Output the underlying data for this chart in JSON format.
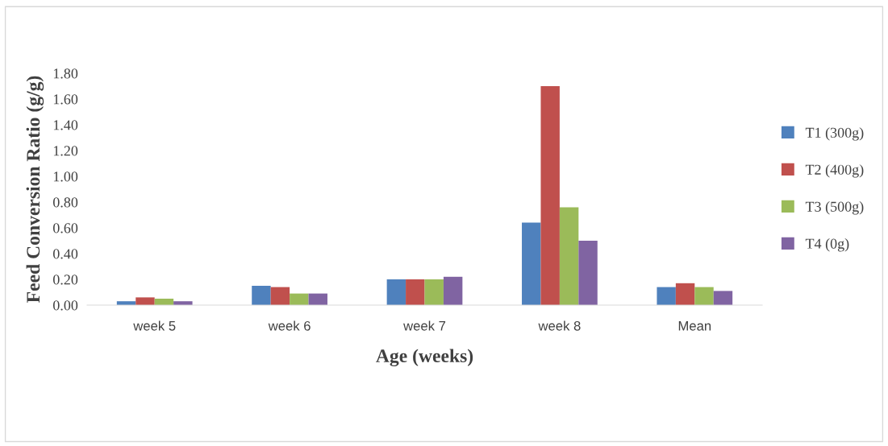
{
  "chart_data": {
    "type": "bar",
    "xlabel": "Age (weeks)",
    "ylabel": "Feed Conversion Ratio (g/g)",
    "categories": [
      "week 5",
      "week 6",
      "week 7",
      "week 8",
      "Mean"
    ],
    "series": [
      {
        "name": "T1 (300g)",
        "color": "#4f81bd",
        "values": [
          0.03,
          0.15,
          0.2,
          0.64,
          0.14
        ]
      },
      {
        "name": "T2 (400g)",
        "color": "#c0504d",
        "values": [
          0.06,
          0.14,
          0.2,
          1.7,
          0.17
        ]
      },
      {
        "name": "T3 (500g)",
        "color": "#9bbb59",
        "values": [
          0.05,
          0.09,
          0.2,
          0.76,
          0.14
        ]
      },
      {
        "name": "T4 (0g)",
        "color": "#8064a2",
        "values": [
          0.03,
          0.09,
          0.22,
          0.5,
          0.11
        ]
      }
    ],
    "ylim": [
      0,
      1.8
    ],
    "yticks": [
      {
        "value": 0,
        "label": "0.00"
      },
      {
        "value": 0.2,
        "label": "0.20"
      },
      {
        "value": 0.4,
        "label": "0.40"
      },
      {
        "value": 0.6,
        "label": "0.60"
      },
      {
        "value": 0.8,
        "label": "0.80"
      },
      {
        "value": 1.0,
        "label": "1.00"
      },
      {
        "value": 1.2,
        "label": "1.20"
      },
      {
        "value": 1.4,
        "label": "1.40"
      },
      {
        "value": 1.6,
        "label": "1.60"
      },
      {
        "value": 1.8,
        "label": "1.80"
      }
    ],
    "grid": false,
    "legend": "right"
  }
}
